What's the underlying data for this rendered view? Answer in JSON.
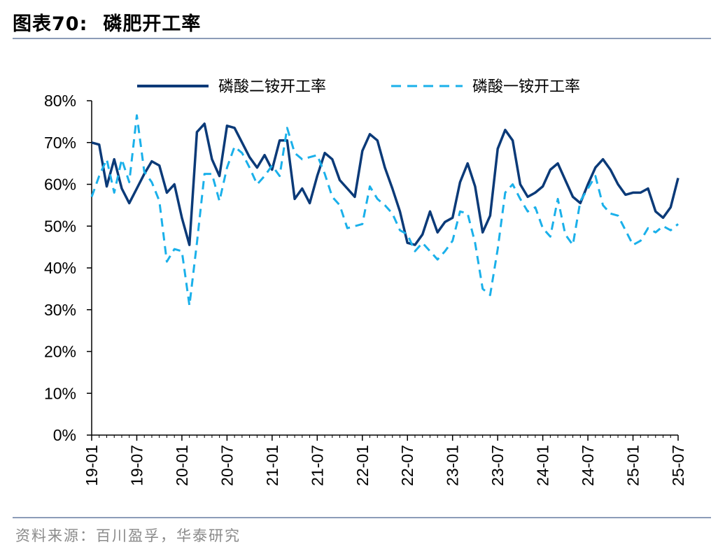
{
  "figure": {
    "number": "图表70:",
    "title": "磷肥开工率",
    "source": "资料来源：百川盈孚，华泰研究"
  },
  "chart_data": {
    "type": "line",
    "x": [
      "19-01",
      "19-02",
      "19-03",
      "19-04",
      "19-05",
      "19-06",
      "19-07",
      "19-08",
      "19-09",
      "19-10",
      "19-11",
      "19-12",
      "20-01",
      "20-02",
      "20-03",
      "20-04",
      "20-05",
      "20-06",
      "20-07",
      "20-08",
      "20-09",
      "20-10",
      "20-11",
      "20-12",
      "21-01",
      "21-02",
      "21-03",
      "21-04",
      "21-05",
      "21-06",
      "21-07",
      "21-08",
      "21-09",
      "21-10",
      "21-11",
      "21-12",
      "22-01",
      "22-02",
      "22-03",
      "22-04",
      "22-05",
      "22-06",
      "22-07",
      "22-08",
      "22-09",
      "22-10",
      "22-11",
      "22-12",
      "23-01",
      "23-02",
      "23-03",
      "23-04",
      "23-05",
      "23-06",
      "23-07",
      "23-08",
      "23-09",
      "23-10",
      "23-11",
      "23-12",
      "24-01",
      "24-02",
      "24-03",
      "24-04",
      "24-05",
      "24-06",
      "24-07",
      "24-08",
      "24-09",
      "24-10",
      "24-11",
      "24-12",
      "25-01",
      "25-02",
      "25-03",
      "25-04",
      "25-05",
      "25-06",
      "25-07"
    ],
    "x_tick_labels": [
      "19-01",
      "19-07",
      "20-01",
      "20-07",
      "21-01",
      "21-07",
      "22-01",
      "22-07",
      "23-01",
      "23-07",
      "24-01",
      "24-07",
      "25-01",
      "25-07"
    ],
    "y_tick_labels": [
      "0%",
      "10%",
      "20%",
      "30%",
      "40%",
      "50%",
      "60%",
      "70%",
      "80%"
    ],
    "ylim": [
      0,
      80
    ],
    "series": [
      {
        "name": "磷酸二铵开工率",
        "style": "solid",
        "color": "#0b3a78",
        "values": [
          70,
          69.5,
          59.5,
          66,
          59,
          55.5,
          59,
          62.5,
          65.5,
          64.5,
          58,
          60,
          52,
          45.5,
          72.5,
          74.5,
          66,
          62,
          74,
          73.5,
          70,
          66.5,
          64,
          67,
          63.5,
          70.5,
          70.5,
          56.5,
          59,
          55.5,
          62,
          67.5,
          66,
          61,
          59,
          57,
          68,
          72,
          70.5,
          64,
          59,
          53.5,
          46,
          45.5,
          48,
          53.5,
          48.5,
          51,
          52,
          60.5,
          65,
          59.5,
          48.5,
          52.5,
          68.5,
          73,
          70.5,
          60,
          57,
          58,
          59.5,
          63.5,
          65,
          61,
          57,
          55.5,
          60,
          64,
          66,
          63.5,
          60,
          57.5,
          58,
          58,
          59,
          53.5,
          52,
          54.5,
          61.5
        ]
      },
      {
        "name": "磷酸一铵开工率",
        "style": "dashed",
        "color": "#1ab0ea",
        "values": [
          57,
          62,
          66,
          58,
          66,
          60.5,
          76.5,
          63,
          60.5,
          56,
          41.5,
          44.5,
          44,
          31,
          46,
          62.5,
          62.5,
          56,
          64,
          69,
          67.5,
          64,
          60,
          62,
          64.5,
          62,
          73.5,
          67.5,
          66,
          66.5,
          67,
          62.5,
          57,
          55,
          49.5,
          50,
          50.5,
          59.5,
          56.5,
          55,
          53,
          49,
          48,
          44,
          46,
          44,
          42,
          44,
          46.5,
          53.5,
          53,
          46,
          35,
          33.5,
          44.5,
          58,
          60,
          56.5,
          53.5,
          54.5,
          49.5,
          47.5,
          56.5,
          48,
          45.5,
          56,
          59,
          62,
          55,
          53,
          52.5,
          49,
          45.5,
          46.5,
          49.5,
          48.5,
          50,
          49,
          50.5
        ]
      }
    ],
    "legend_position": "top",
    "grid": false
  }
}
